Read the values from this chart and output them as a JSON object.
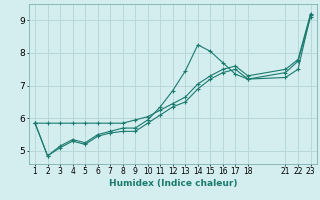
{
  "xlabel": "Humidex (Indice chaleur)",
  "ylabel": "",
  "bg_color": "#d4eef0",
  "grid_color": "#b8d8da",
  "line_color": "#1a7a6e",
  "xlim": [
    0.5,
    23.5
  ],
  "ylim": [
    4.6,
    9.5
  ],
  "xticks": [
    1,
    2,
    3,
    4,
    5,
    6,
    7,
    8,
    9,
    10,
    11,
    12,
    13,
    14,
    15,
    16,
    17,
    18,
    21,
    22,
    23
  ],
  "yticks": [
    5,
    6,
    7,
    8,
    9
  ],
  "series": [
    {
      "x": [
        1,
        2,
        3,
        4,
        5,
        6,
        7,
        8,
        9,
        10,
        11,
        12,
        13,
        14,
        15,
        16,
        17,
        18,
        21,
        22,
        23
      ],
      "y": [
        5.85,
        5.85,
        5.85,
        5.85,
        5.85,
        5.85,
        5.85,
        5.85,
        5.95,
        6.05,
        6.25,
        6.45,
        6.65,
        7.05,
        7.3,
        7.5,
        7.6,
        7.3,
        7.5,
        7.8,
        9.2
      ]
    },
    {
      "x": [
        1,
        2,
        3,
        4,
        5,
        6,
        7,
        8,
        9,
        10,
        11,
        12,
        13,
        14,
        15,
        16,
        17,
        18,
        21,
        22,
        23
      ],
      "y": [
        5.85,
        4.85,
        5.15,
        5.35,
        5.25,
        5.5,
        5.6,
        5.7,
        5.7,
        5.95,
        6.35,
        6.85,
        7.45,
        8.25,
        8.05,
        7.7,
        7.35,
        7.2,
        7.25,
        7.5,
        9.15
      ]
    },
    {
      "x": [
        1,
        2,
        3,
        4,
        5,
        6,
        7,
        8,
        9,
        10,
        11,
        12,
        13,
        14,
        15,
        16,
        17,
        18,
        21,
        22,
        23
      ],
      "y": [
        5.85,
        4.85,
        5.1,
        5.3,
        5.2,
        5.45,
        5.55,
        5.6,
        5.6,
        5.85,
        6.1,
        6.35,
        6.5,
        6.9,
        7.2,
        7.4,
        7.5,
        7.2,
        7.4,
        7.75,
        9.1
      ]
    }
  ]
}
